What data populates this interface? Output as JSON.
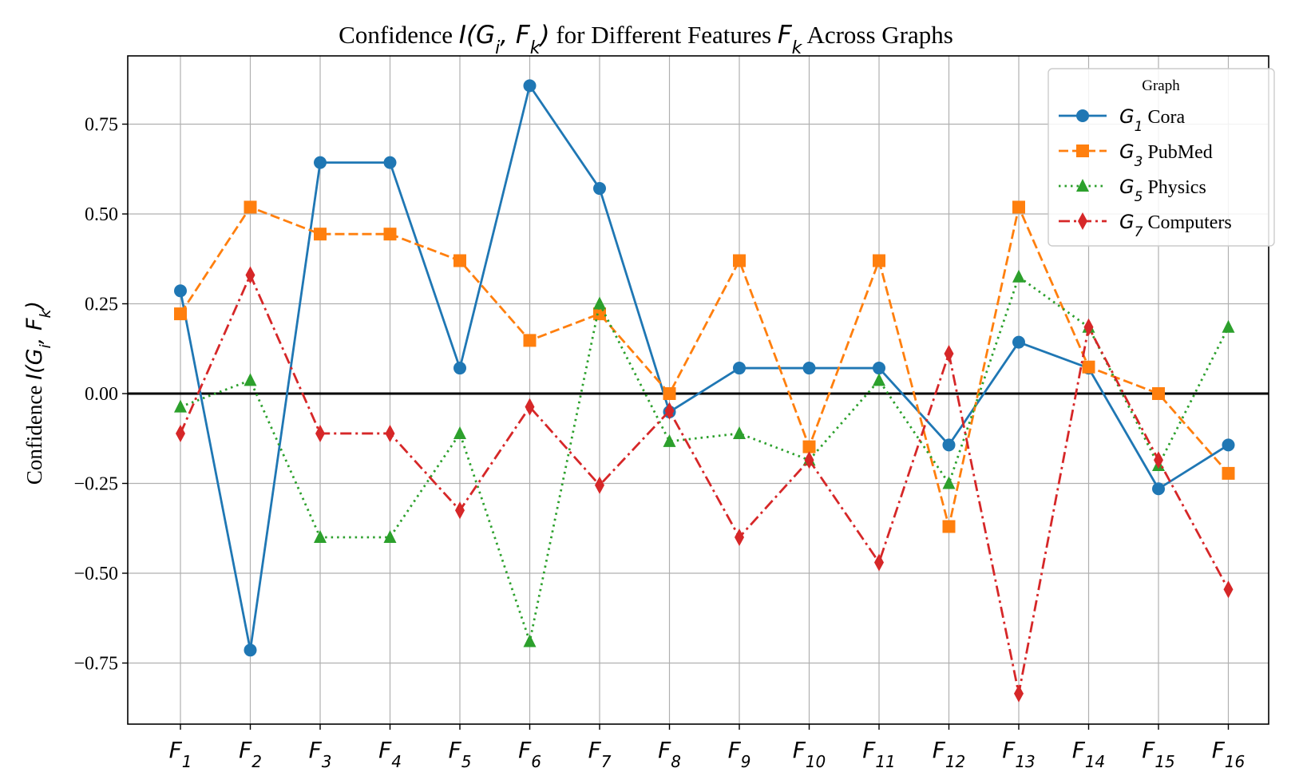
{
  "chart_data": {
    "type": "line",
    "title": {
      "prefix": "Confidence ",
      "math1": "I(G",
      "math1_sub": "i",
      "math1_mid": ", F",
      "math1_sub2": "k",
      "math1_end": ")",
      "middle": " for Different Features ",
      "math2": "F",
      "math2_sub": "k",
      "suffix": " Across Graphs"
    },
    "ylabel": {
      "prefix": "Confidence ",
      "math": "I(G",
      "sub1": "i",
      "mid": ", F",
      "sub2": "k",
      "end": ")"
    },
    "categories": [
      "F1",
      "F2",
      "F3",
      "F4",
      "F5",
      "F6",
      "F7",
      "F8",
      "F9",
      "F10",
      "F11",
      "F12",
      "F13",
      "F14",
      "F15",
      "F16"
    ],
    "category_labels": [
      {
        "base": "F",
        "sub": "1"
      },
      {
        "base": "F",
        "sub": "2"
      },
      {
        "base": "F",
        "sub": "3"
      },
      {
        "base": "F",
        "sub": "4"
      },
      {
        "base": "F",
        "sub": "5"
      },
      {
        "base": "F",
        "sub": "6"
      },
      {
        "base": "F",
        "sub": "7"
      },
      {
        "base": "F",
        "sub": "8"
      },
      {
        "base": "F",
        "sub": "9"
      },
      {
        "base": "F",
        "sub": "10"
      },
      {
        "base": "F",
        "sub": "11"
      },
      {
        "base": "F",
        "sub": "12"
      },
      {
        "base": "F",
        "sub": "13"
      },
      {
        "base": "F",
        "sub": "14"
      },
      {
        "base": "F",
        "sub": "15"
      },
      {
        "base": "F",
        "sub": "16"
      }
    ],
    "ylim": [
      -0.92,
      0.94
    ],
    "yticks": [
      -0.75,
      -0.5,
      -0.25,
      0.0,
      0.25,
      0.5,
      0.75
    ],
    "ytick_labels": [
      "−0.75",
      "−0.50",
      "−0.25",
      "0.00",
      "0.25",
      "0.50",
      "0.75"
    ],
    "grid": true,
    "zero_line": true,
    "legend": {
      "title": "Graph",
      "placement": "top-right"
    },
    "series": [
      {
        "name": "Cora",
        "label_base": "G",
        "label_sub": "1",
        "label_text": " Cora",
        "color": "#1f77b4",
        "marker": "circle",
        "dash": "solid",
        "values": [
          0.286,
          -0.714,
          0.643,
          0.643,
          0.071,
          0.857,
          0.571,
          -0.051,
          0.071,
          0.071,
          0.071,
          -0.143,
          0.143,
          0.071,
          -0.265,
          -0.143
        ]
      },
      {
        "name": "PubMed",
        "label_base": "G",
        "label_sub": "3",
        "label_text": " PubMed",
        "color": "#ff7f0e",
        "marker": "square",
        "dash": "dashed",
        "values": [
          0.222,
          0.519,
          0.444,
          0.444,
          0.37,
          0.148,
          0.222,
          0.0,
          0.37,
          -0.148,
          0.37,
          -0.37,
          0.519,
          0.074,
          0.0,
          -0.222
        ]
      },
      {
        "name": "Physics",
        "label_base": "G",
        "label_sub": "5",
        "label_text": " Physics",
        "color": "#2ca02c",
        "marker": "triangle",
        "dash": "dotted",
        "values": [
          -0.037,
          0.037,
          -0.4,
          -0.4,
          -0.111,
          -0.69,
          0.25,
          -0.133,
          -0.111,
          -0.185,
          0.037,
          -0.25,
          0.325,
          0.185,
          -0.2,
          0.185
        ]
      },
      {
        "name": "Computers",
        "label_base": "G",
        "label_sub": "7",
        "label_text": " Computers",
        "color": "#d62728",
        "marker": "diamond",
        "dash": "dashdot",
        "values": [
          -0.111,
          0.33,
          -0.111,
          -0.111,
          -0.325,
          -0.037,
          -0.255,
          -0.048,
          -0.4,
          -0.185,
          -0.47,
          0.111,
          -0.835,
          0.185,
          -0.185,
          -0.545
        ]
      }
    ]
  }
}
